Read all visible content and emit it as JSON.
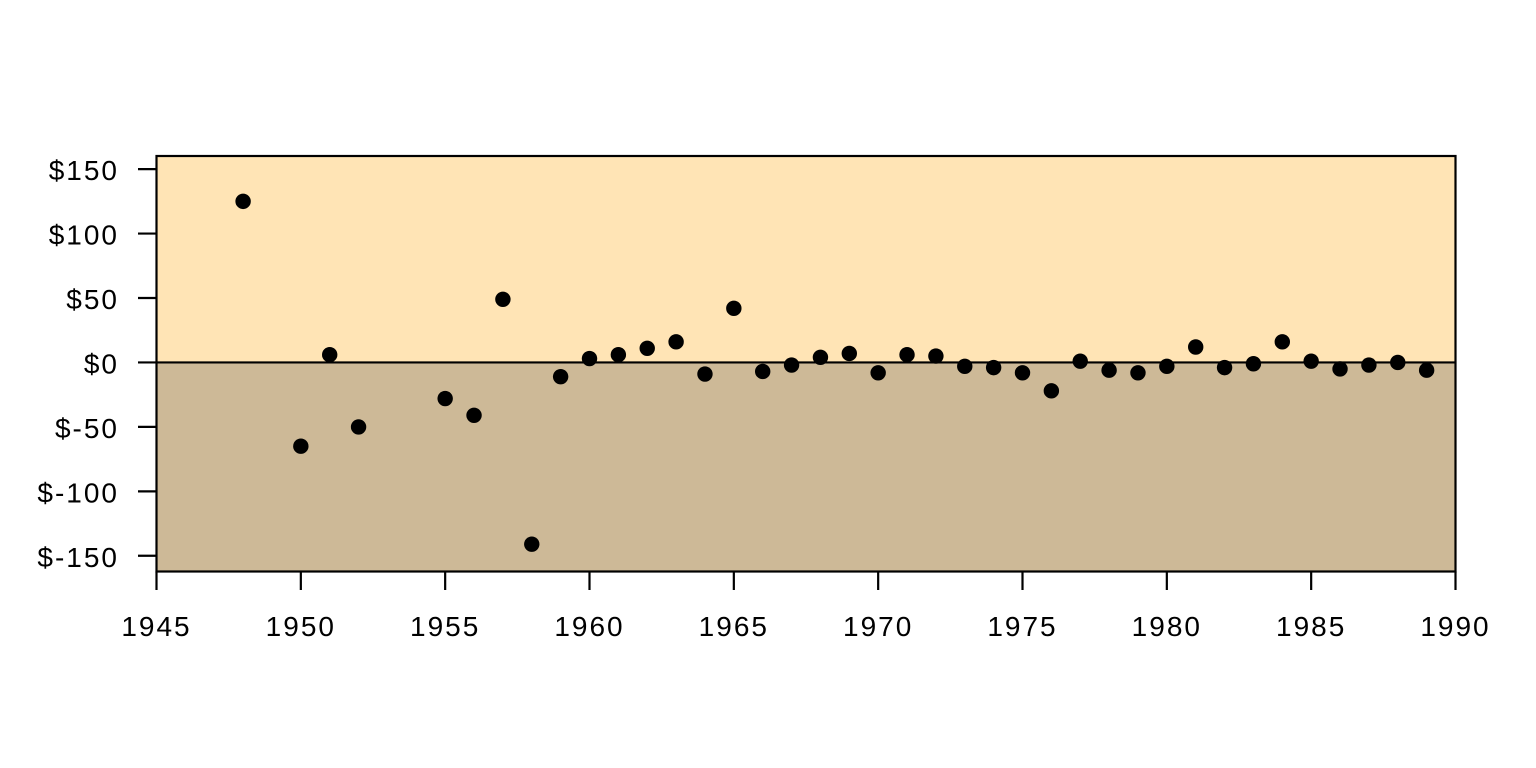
{
  "chart_data": {
    "type": "scatter",
    "title": "",
    "xlabel": "",
    "ylabel": "",
    "x": [
      1948,
      1950,
      1951,
      1952,
      1955,
      1956,
      1957,
      1958,
      1959,
      1960,
      1961,
      1962,
      1963,
      1964,
      1965,
      1966,
      1967,
      1968,
      1969,
      1970,
      1971,
      1972,
      1973,
      1974,
      1975,
      1976,
      1977,
      1978,
      1979,
      1980,
      1981,
      1982,
      1983,
      1984,
      1985,
      1986,
      1987,
      1988,
      1989
    ],
    "y": [
      125,
      -65,
      6,
      -50,
      -28,
      -41,
      49,
      -141,
      -11,
      3,
      6,
      11,
      16,
      -9,
      42,
      -7,
      -2,
      4,
      7,
      -8,
      6,
      5,
      -3,
      -4,
      -8,
      -22,
      1,
      -6,
      -8,
      -3,
      12,
      -4,
      -1,
      16,
      1,
      -5,
      -2,
      0,
      -6
    ],
    "xlim": [
      1945,
      1990
    ],
    "ylim": [
      -162.2,
      160.2
    ],
    "x_ticks": [
      1945,
      1950,
      1955,
      1960,
      1965,
      1970,
      1975,
      1980,
      1985,
      1990
    ],
    "x_tick_labels": [
      "1945",
      "1950",
      "1955",
      "1960",
      "1965",
      "1970",
      "1975",
      "1980",
      "1985",
      "1990"
    ],
    "y_ticks": [
      150,
      100,
      50,
      0,
      -50,
      -100,
      -150
    ],
    "y_tick_labels": [
      "$150",
      "$100",
      "$50",
      "$0",
      "$-50",
      "$-100",
      "$-150"
    ],
    "grid": false,
    "legend": null,
    "zero_line_value": 0,
    "point_radius_px": 7.7,
    "colors": {
      "above_zero_fill": "#FFE4B5",
      "below_zero_fill": "#CDB997",
      "point_fill": "#000000",
      "axis_color": "#000000",
      "page_background": "#FFFFFF"
    }
  }
}
